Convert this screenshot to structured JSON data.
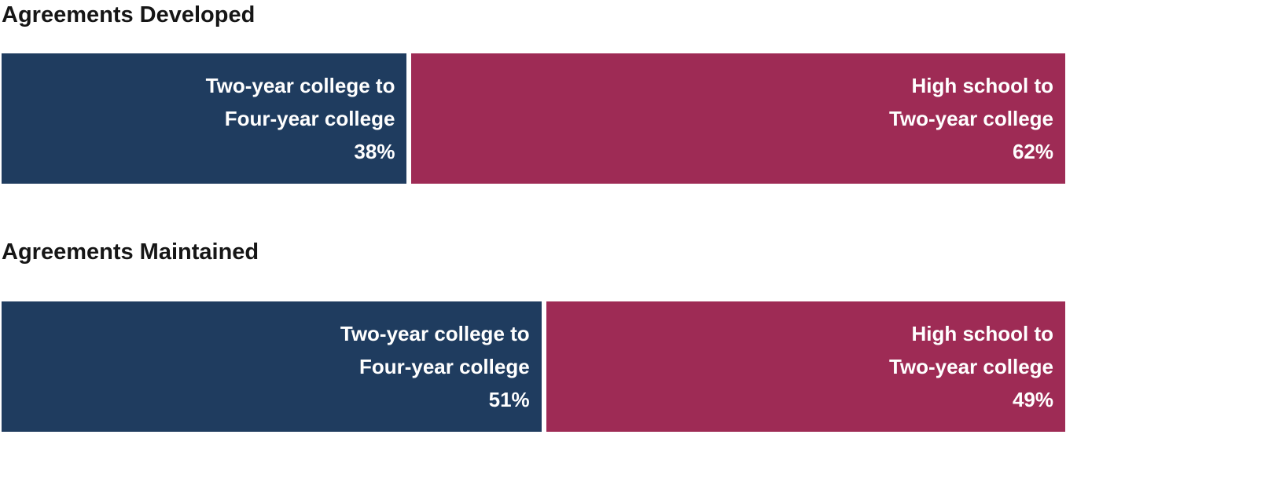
{
  "charts": [
    {
      "title": "Agreements Developed",
      "segments": [
        {
          "lines": [
            "Two-year college to",
            "Four-year college",
            "38%"
          ],
          "percent": 38,
          "color": "#1F3C5F"
        },
        {
          "lines": [
            "High school to",
            "Two-year college",
            "62%"
          ],
          "percent": 62,
          "color": "#9E2B55"
        }
      ]
    },
    {
      "title": "Agreements Maintained",
      "segments": [
        {
          "lines": [
            "Two-year college to",
            "Four-year college",
            "51%"
          ],
          "percent": 51,
          "color": "#1F3C5F"
        },
        {
          "lines": [
            "High school to",
            "Two-year college",
            "49%"
          ],
          "percent": 49,
          "color": "#9E2B55"
        }
      ]
    }
  ],
  "chart_data": [
    {
      "type": "bar",
      "subtype": "stacked-horizontal-100-percent",
      "title": "Agreements Developed",
      "categories": [
        "Two-year college to Four-year college",
        "High school to Two-year college"
      ],
      "values": [
        38,
        62
      ],
      "unit": "%",
      "colors": [
        "#1F3C5F",
        "#9E2B55"
      ],
      "xlim": [
        0,
        100
      ],
      "grid": false,
      "legend_position": "labels-inside-bars",
      "data_labels": [
        "38%",
        "62%"
      ]
    },
    {
      "type": "bar",
      "subtype": "stacked-horizontal-100-percent",
      "title": "Agreements Maintained",
      "categories": [
        "Two-year college to Four-year college",
        "High school to Two-year college"
      ],
      "values": [
        51,
        49
      ],
      "unit": "%",
      "colors": [
        "#1F3C5F",
        "#9E2B55"
      ],
      "xlim": [
        0,
        100
      ],
      "grid": false,
      "legend_position": "labels-inside-bars",
      "data_labels": [
        "51%",
        "49%"
      ]
    }
  ]
}
